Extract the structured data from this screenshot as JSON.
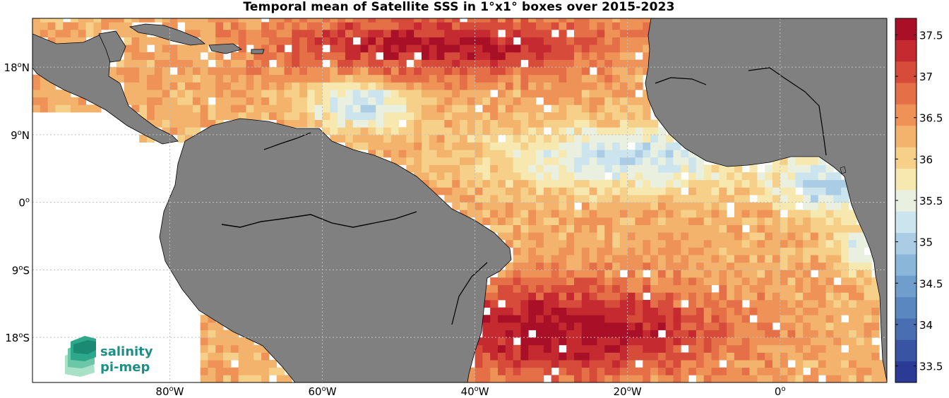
{
  "title": "Temporal mean of Satellite SSS in 1°x1° boxes over 2015-2023",
  "logo": {
    "line1": "salinity",
    "line2": "pi-mep"
  },
  "map": {
    "lon_range": [
      -98,
      14
    ],
    "lat_range": [
      -24,
      24.5
    ],
    "lon_ticks": [
      {
        "value": -80,
        "deg": "80",
        "hem": "W"
      },
      {
        "value": -60,
        "deg": "60",
        "hem": "W"
      },
      {
        "value": -40,
        "deg": "40",
        "hem": "W"
      },
      {
        "value": -20,
        "deg": "20",
        "hem": "W"
      },
      {
        "value": 0,
        "deg": "0",
        "hem": ""
      }
    ],
    "lat_ticks": [
      {
        "value": 18,
        "deg": "18",
        "hem": "N"
      },
      {
        "value": 9,
        "deg": "9",
        "hem": "N"
      },
      {
        "value": 0,
        "deg": "0",
        "hem": ""
      },
      {
        "value": -9,
        "deg": "9",
        "hem": "S"
      },
      {
        "value": -18,
        "deg": "18",
        "hem": "S"
      }
    ],
    "colors": {
      "land": "#808080",
      "coast": "#000000",
      "grid": "#bfbfbf"
    }
  },
  "colorbar": {
    "min": 33.3,
    "max": 37.7,
    "ticks": [
      "37.5",
      "37",
      "36.5",
      "36",
      "35.5",
      "35",
      "34.5",
      "34",
      "33.5"
    ],
    "colors": [
      "#2a3a95",
      "#3a54a4",
      "#4a6eb2",
      "#5a87bf",
      "#6f9ecc",
      "#8ab6d9",
      "#aacde5",
      "#cbe4ee",
      "#e9f0e0",
      "#f7e8b0",
      "#f6d088",
      "#f3b36c",
      "#ee9257",
      "#e56f47",
      "#d74b3a",
      "#c42a2f",
      "#a90f26"
    ]
  }
}
